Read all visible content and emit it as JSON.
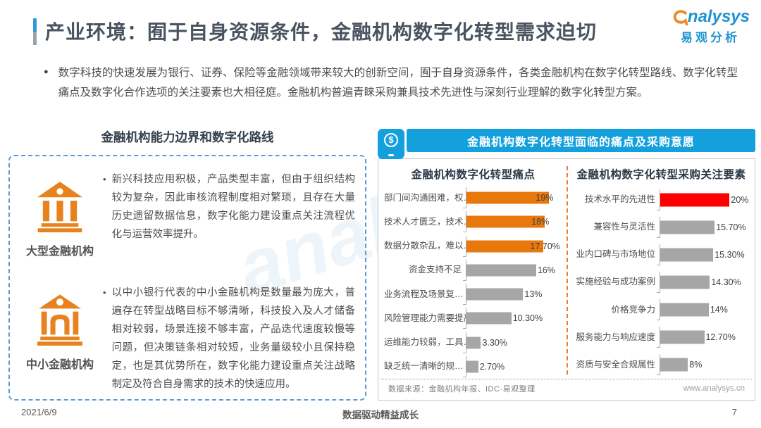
{
  "page": {
    "title": "产业环境：囿于自身资源条件，金融机构数字化转型需求迫切",
    "logo": {
      "brand": "nalysys",
      "brand_cn": "易观分析"
    },
    "intro_bullet": "数字科技的快速发展为银行、证券、保险等金融领域带来较大的创新空间，囿于自身资源条件，各类金融机构在数字化转型路线、数字化转型痛点及数字化合作选项的关注要素也大相径庭。金融机构普遍青睐采购兼具技术先进性与深刻行业理解的数字化转型方案。",
    "footer": {
      "date": "2021/6/9",
      "slogan": "数据驱动精益成长",
      "page_number": "7"
    },
    "watermark": {
      "latin": "analysys",
      "cn": "易观分析"
    }
  },
  "left_panel": {
    "heading": "金融机构能力边界和数字化路线",
    "items": [
      {
        "icon": "bank-large-icon",
        "label": "大型金融机构",
        "text": "新兴科技应用积极，产品类型丰富，但由于组织结构较为复杂，因此审核流程制度相对繁琐，且存在大量历史遗留数据信息，数字化能力建设重点关注流程优化与运营效率提升。"
      },
      {
        "icon": "bank-small-icon",
        "label": "中小金融机构",
        "text": "以中小银行代表的中小金融机构是数量最为庞大，普遍存在转型战略目标不够清晰，科技投入及人才储备相对较弱，场景连接不够丰富，产品迭代速度较慢等问题，但决策链条相对较短，业务量级较小且保持稳定，也是其优势所在，数字化能力建设重点关注战略制定及符合自身需求的技术的快速应用。"
      }
    ]
  },
  "right_panel": {
    "header": "金融机构数字化转型面临的痛点及采购意愿",
    "icon": "mobile-payment-icon",
    "source_note": "数据来源：金融机构年报、IDC·易观整理",
    "website": "www.analysys.cn"
  },
  "chart_data": [
    {
      "type": "bar",
      "orientation": "horizontal",
      "title": "金融机构数字化转型痛点",
      "categories": [
        "部门间沟通困难，权…",
        "技术人才匮乏，技术…",
        "数据分散杂乱，难以…",
        "资金支持不足",
        "业务流程及场景复…",
        "风险管理能力需要提高",
        "运维能力较弱，工具…",
        "缺乏统一清晰的规…"
      ],
      "values": [
        19,
        18,
        17.7,
        16,
        13,
        10.3,
        3.3,
        2.7
      ],
      "value_labels": [
        "19%",
        "18%",
        "17.70%",
        "16%",
        "13%",
        "10.30%",
        "3.30%",
        "2.70%"
      ],
      "bar_colors": [
        "#e8780c",
        "#e8780c",
        "#e8780c",
        "#a6a6a6",
        "#a6a6a6",
        "#a6a6a6",
        "#a6a6a6",
        "#a6a6a6"
      ],
      "xlim": [
        0,
        22
      ],
      "grid": false,
      "legend": false
    },
    {
      "type": "bar",
      "orientation": "horizontal",
      "title": "金融机构数字化转型采购关注要素",
      "categories": [
        "技术水平的先进性",
        "兼容性与灵活性",
        "业内口碑与市场地位",
        "实施经验与成功案例",
        "价格竞争力",
        "服务能力与响应速度",
        "资质与安全合规属性"
      ],
      "values": [
        20,
        15.7,
        15.3,
        14.3,
        14,
        12.7,
        8
      ],
      "value_labels": [
        "20%",
        "15.70%",
        "15.30%",
        "14.30%",
        "14%",
        "12.70%",
        "8%"
      ],
      "bar_colors": [
        "#fe0000",
        "#a6a6a6",
        "#a6a6a6",
        "#a6a6a6",
        "#a6a6a6",
        "#a6a6a6",
        "#a6a6a6"
      ],
      "xlim": [
        0,
        26
      ],
      "grid": false,
      "legend": false
    }
  ],
  "colors": {
    "accent_blue": "#14a0dc",
    "dashed_border_blue": "#5b9bd5",
    "divider_orange": "#ed7d31",
    "bank_icon_orange": "#e8821e",
    "pain_bar_orange": "#e8780c",
    "focus_bar_red": "#fe0000",
    "neutral_bar_gray": "#a6a6a6",
    "title_dark": "#4a5360"
  }
}
